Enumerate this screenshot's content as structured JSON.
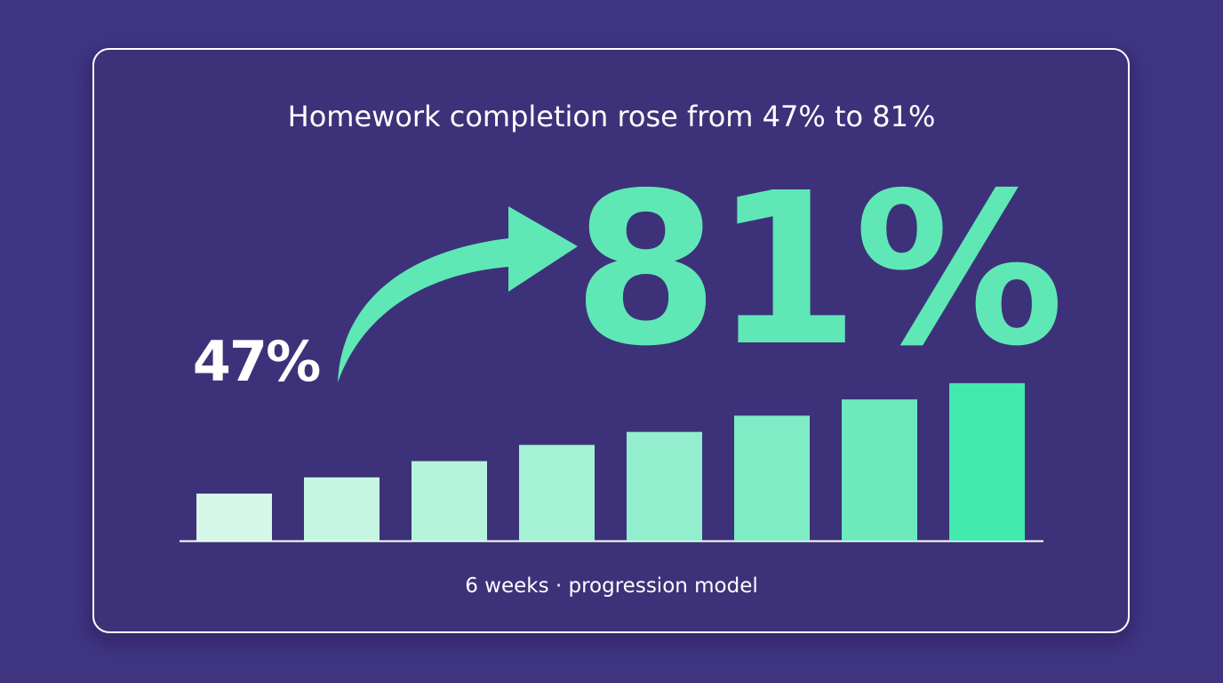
{
  "chart_data": {
    "type": "bar",
    "title": "Homework completion rose from 47% to 81%",
    "start_label": "47%",
    "end_label": "81%",
    "footnote": "6 weeks · progression model",
    "values": [
      47,
      52,
      57,
      62,
      66,
      71,
      76,
      81
    ],
    "colors": [
      "#d6f8ea",
      "#c6f6e3",
      "#b5f3dc",
      "#a4f1d5",
      "#92eecd",
      "#80ecc6",
      "#6de9be",
      "#44e9ad"
    ],
    "ylim": [
      32.5,
      90
    ]
  }
}
